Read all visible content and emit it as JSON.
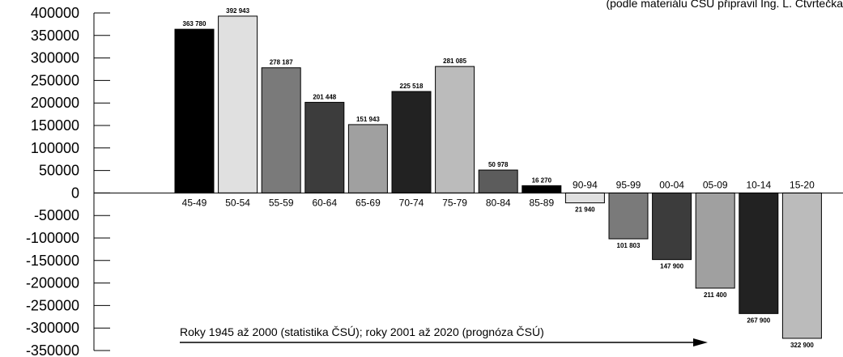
{
  "source_note": "(podle materiálu ČSÚ připravil Ing. L. Čtvrtečka",
  "footnote": "Roky 1945 až 2000 (statistika ČSÚ); roky 2001 až 2020 (prognóza ČSÚ)",
  "colors": {
    "black": "#000000",
    "bar_fills": [
      "#000000",
      "#e0e0e0",
      "#7a7a7a",
      "#3c3c3c",
      "#a0a0a0",
      "#222222",
      "#bbbbbb",
      "#5c5c5c",
      "#000000",
      "#e0e0e0",
      "#7a7a7a",
      "#3c3c3c",
      "#a0a0a0",
      "#222222",
      "#bbbbbb"
    ]
  },
  "chart_data": {
    "type": "bar",
    "title": "",
    "xlabel": "",
    "ylabel": "",
    "ylim": [
      -350000,
      400000
    ],
    "yticks": [
      400000,
      350000,
      300000,
      250000,
      200000,
      150000,
      100000,
      50000,
      0,
      -50000,
      -100000,
      -150000,
      -200000,
      -250000,
      -300000,
      -350000
    ],
    "ytick_labels": [
      "400000",
      "350000",
      "300000",
      "250000",
      "200000",
      "150000",
      "100000",
      "50000",
      "0",
      "-50000",
      "-100000",
      "-150000",
      "-200000",
      "-250000",
      "-300000",
      "-350000"
    ],
    "categories": [
      "45-49",
      "50-54",
      "55-59",
      "60-64",
      "65-69",
      "70-74",
      "75-79",
      "80-84",
      "85-89",
      "90-94",
      "95-99",
      "00-04",
      "05-09",
      "10-14",
      "15-20"
    ],
    "values": [
      363780,
      392943,
      278187,
      201448,
      151943,
      225518,
      281085,
      50978,
      16270,
      -21940,
      -101803,
      -147900,
      -211400,
      -267900,
      -322900
    ],
    "value_labels": [
      "363 780",
      "392 943",
      "278 187",
      "201 448",
      "151 943",
      "225 518",
      "281 085",
      "50 978",
      "16 270",
      "21 940",
      "101 803",
      "147 900",
      "211 400",
      "267 900",
      "322 900"
    ],
    "grid": false,
    "legend": "none"
  }
}
